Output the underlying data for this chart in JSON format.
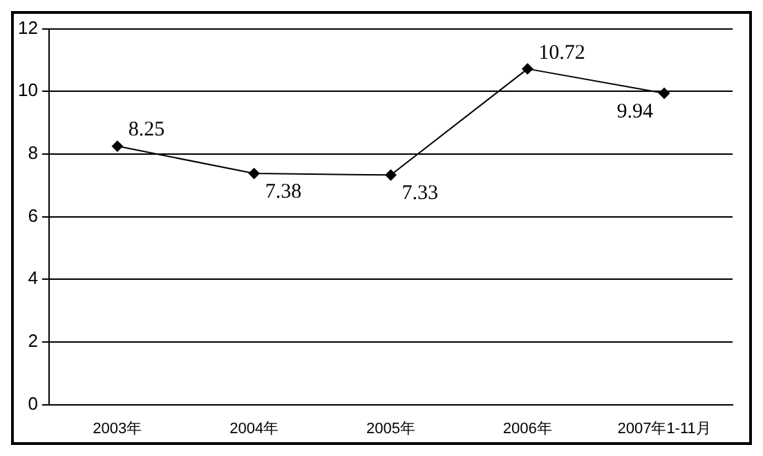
{
  "chart_data": {
    "type": "line",
    "categories": [
      "2003年",
      "2004年",
      "2005年",
      "2006年",
      "2007年1-11月"
    ],
    "series": [
      {
        "color": "#000000",
        "values": [
          8.25,
          7.38,
          7.33,
          10.72,
          9.94
        ]
      }
    ],
    "ylim": [
      0,
      12
    ],
    "yticks": [
      0,
      2,
      4,
      6,
      8,
      10,
      12
    ],
    "grid": "y",
    "marker": "diamond",
    "line_style": "solid",
    "data_labels": true,
    "legend": false
  }
}
